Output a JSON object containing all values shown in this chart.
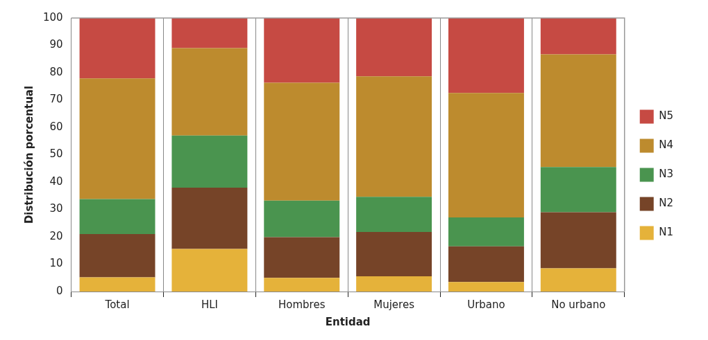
{
  "chart_data": {
    "type": "bar",
    "stacked": true,
    "xlabel": "Entidad",
    "ylabel": "Distribución porcentual",
    "categories": [
      "Total",
      "HLI",
      "Hombres",
      "Mujeres",
      "Urbano",
      "No urbano"
    ],
    "series": [
      {
        "name": "N1",
        "color": "#e5b23a",
        "values": [
          5.2,
          15.6,
          5,
          5.6,
          3.5,
          8.5
        ]
      },
      {
        "name": "N2",
        "color": "#764428",
        "values": [
          15.8,
          22.4,
          14.9,
          16.2,
          13,
          20.5
        ]
      },
      {
        "name": "N3",
        "color": "#4a944f",
        "values": [
          12.8,
          19,
          13.3,
          12.8,
          10.6,
          16.5
        ]
      },
      {
        "name": "N4",
        "color": "#bd8b2e",
        "values": [
          44.1,
          32,
          43.1,
          44.1,
          45.5,
          41.2
        ]
      },
      {
        "name": "N5",
        "color": "#c64a43",
        "values": [
          22.1,
          11,
          23.7,
          21.3,
          27.4,
          13.3
        ]
      }
    ],
    "ylim": [
      0,
      100
    ],
    "yticks": [
      0,
      10,
      20,
      30,
      40,
      50,
      60,
      70,
      80,
      90,
      100
    ],
    "grid": "x",
    "legend": "right"
  }
}
